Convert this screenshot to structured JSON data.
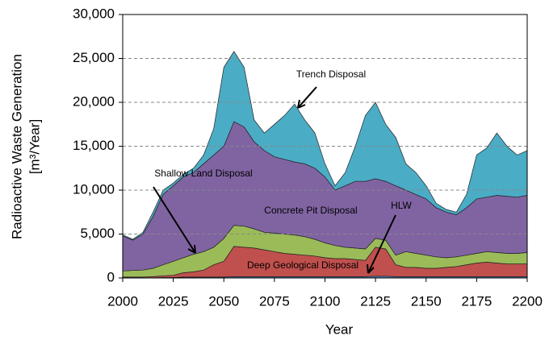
{
  "chart_data": {
    "type": "stacked_area",
    "x_label": "Year",
    "y_label": [
      "Radioactive Waste Generation",
      "[m³/Year]"
    ],
    "x": [
      2000,
      2005,
      2010,
      2015,
      2020,
      2025,
      2030,
      2035,
      2040,
      2045,
      2050,
      2055,
      2060,
      2065,
      2070,
      2075,
      2080,
      2085,
      2090,
      2095,
      2100,
      2105,
      2110,
      2115,
      2120,
      2125,
      2130,
      2135,
      2140,
      2145,
      2150,
      2155,
      2160,
      2165,
      2170,
      2175,
      2180,
      2185,
      2190,
      2195,
      2200
    ],
    "series": [
      {
        "name": "HLW",
        "color": "#4f81bd",
        "values": [
          0,
          0,
          0,
          0,
          50,
          50,
          100,
          100,
          100,
          100,
          100,
          150,
          150,
          150,
          150,
          150,
          150,
          150,
          150,
          150,
          150,
          150,
          150,
          150,
          150,
          200,
          200,
          150,
          150,
          150,
          150,
          150,
          150,
          150,
          150,
          150,
          150,
          150,
          150,
          150,
          150
        ]
      },
      {
        "name": "Deep Geological Disposal",
        "color": "#c0504d",
        "values": [
          100,
          100,
          100,
          150,
          200,
          250,
          500,
          600,
          800,
          1400,
          1800,
          3450,
          3350,
          3250,
          3050,
          2850,
          2650,
          2550,
          2450,
          2350,
          2150,
          2050,
          2050,
          1950,
          1850,
          3300,
          3100,
          1350,
          1050,
          1050,
          950,
          950,
          1050,
          1150,
          1350,
          1550,
          1650,
          1550,
          1450,
          1450,
          1450
        ]
      },
      {
        "name": "Shallow Land Disposal",
        "color": "#9bbb59",
        "values": [
          700,
          750,
          800,
          950,
          1250,
          1600,
          1700,
          2000,
          2100,
          2000,
          2600,
          2400,
          2400,
          2200,
          2000,
          2100,
          2200,
          2200,
          2100,
          1900,
          1700,
          1500,
          1300,
          1300,
          1300,
          1000,
          1000,
          1100,
          1800,
          1600,
          1500,
          1300,
          1100,
          1100,
          1100,
          1100,
          1200,
          1200,
          1200,
          1200,
          1300
        ]
      },
      {
        "name": "Concrete Pit Disposal",
        "color": "#8064a2",
        "values": [
          4000,
          3450,
          4100,
          5900,
          8000,
          8600,
          9200,
          9300,
          10000,
          10500,
          10500,
          11800,
          11300,
          9900,
          9300,
          8700,
          8500,
          8300,
          8300,
          8100,
          7500,
          6300,
          7000,
          7600,
          7700,
          6800,
          6700,
          7900,
          7000,
          6700,
          6400,
          5600,
          5200,
          4800,
          5400,
          6200,
          6200,
          6500,
          6500,
          6400,
          6500
        ]
      },
      {
        "name": "Trench Disposal",
        "color": "#4bacc6",
        "values": [
          100,
          100,
          200,
          500,
          500,
          300,
          300,
          500,
          1000,
          3000,
          9000,
          8000,
          6800,
          2500,
          2000,
          3700,
          5000,
          6600,
          5000,
          4000,
          1500,
          500,
          1500,
          4000,
          7500,
          8700,
          6500,
          5500,
          3000,
          2500,
          1500,
          500,
          300,
          300,
          1500,
          5000,
          5600,
          7100,
          5700,
          4800,
          5100
        ]
      }
    ],
    "xlim": [
      2000,
      2200
    ],
    "xticks": [
      2000,
      2025,
      2050,
      2075,
      2100,
      2125,
      2150,
      2175,
      2200
    ],
    "ylim": [
      0,
      30000
    ],
    "yticks": [
      0,
      {
        "value": 5000,
        "label": "5,000"
      },
      {
        "value": 10000,
        "label": "10,000"
      },
      {
        "value": 15000,
        "label": "15,000"
      },
      {
        "value": 20000,
        "label": "20,000"
      },
      {
        "value": 25000,
        "label": "25,000"
      },
      {
        "value": 30000,
        "label": "30,000"
      }
    ],
    "grid": true
  }
}
